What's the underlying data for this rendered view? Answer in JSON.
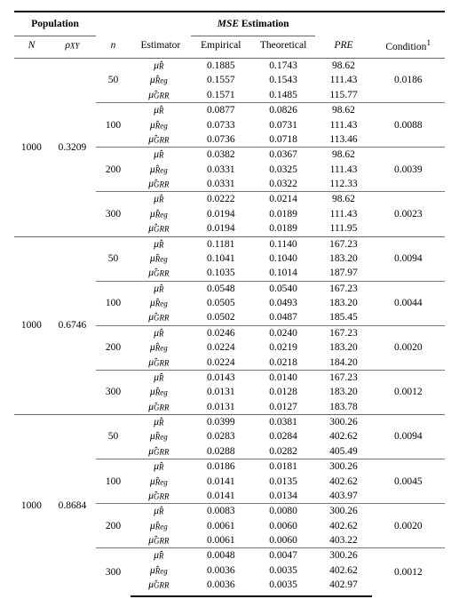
{
  "table": {
    "type": "table",
    "background_color": "#ffffff",
    "font_family": "Palatino, serif",
    "base_fontsize_pt": 9,
    "rule_color": "#000000",
    "subrule_color": "#777777",
    "columns": [
      "N",
      "rho_XY",
      "n",
      "Estimator",
      "Empirical",
      "Theoretical",
      "PRE",
      "Condition"
    ],
    "header": {
      "population_label": "Population",
      "mse_label": "MSE",
      "mse_estimation_word": "Estimation",
      "N": "N",
      "rho": "ρ",
      "rho_sub": "XY",
      "n": "n",
      "estimator": "Estimator",
      "empirical": "Empirical",
      "theoretical": "Theoretical",
      "pre": "PRE",
      "condition": "Condition",
      "condition_sup": "1"
    },
    "estimators": {
      "R": {
        "symbol": "μ̂",
        "sub": "R"
      },
      "Reg": {
        "symbol": "μ̂",
        "sub": "Reg"
      },
      "GRR": {
        "symbol": "μ̂",
        "sub": "GRR"
      }
    },
    "blocks": [
      {
        "N": "1000",
        "rho": "0.3209",
        "groups": [
          {
            "n": "50",
            "rows": [
              {
                "est": "R",
                "emp": "0.1885",
                "theo": "0.1743",
                "pre": "98.62"
              },
              {
                "est": "Reg",
                "emp": "0.1557",
                "theo": "0.1543",
                "pre": "111.43"
              },
              {
                "est": "GRR",
                "emp": "0.1571",
                "theo": "0.1485",
                "pre": "115.77"
              }
            ],
            "condition": "0.0186"
          },
          {
            "n": "100",
            "rows": [
              {
                "est": "R",
                "emp": "0.0877",
                "theo": "0.0826",
                "pre": "98.62"
              },
              {
                "est": "Reg",
                "emp": "0.0733",
                "theo": "0.0731",
                "pre": "111.43"
              },
              {
                "est": "GRR",
                "emp": "0.0736",
                "theo": "0.0718",
                "pre": "113.46"
              }
            ],
            "condition": "0.0088"
          },
          {
            "n": "200",
            "rows": [
              {
                "est": "R",
                "emp": "0.0382",
                "theo": "0.0367",
                "pre": "98.62"
              },
              {
                "est": "Reg",
                "emp": "0.0331",
                "theo": "0.0325",
                "pre": "111.43"
              },
              {
                "est": "GRR",
                "emp": "0.0331",
                "theo": "0.0322",
                "pre": "112.33"
              }
            ],
            "condition": "0.0039"
          },
          {
            "n": "300",
            "rows": [
              {
                "est": "R",
                "emp": "0.0222",
                "theo": "0.0214",
                "pre": "98.62"
              },
              {
                "est": "Reg",
                "emp": "0.0194",
                "theo": "0.0189",
                "pre": "111.43"
              },
              {
                "est": "GRR",
                "emp": "0.0194",
                "theo": "0.0189",
                "pre": "111.95"
              }
            ],
            "condition": "0.0023"
          }
        ]
      },
      {
        "N": "1000",
        "rho": "0.6746",
        "groups": [
          {
            "n": "50",
            "rows": [
              {
                "est": "R",
                "emp": "0.1181",
                "theo": "0.1140",
                "pre": "167.23"
              },
              {
                "est": "Reg",
                "emp": "0.1041",
                "theo": "0.1040",
                "pre": "183.20"
              },
              {
                "est": "GRR",
                "emp": "0.1035",
                "theo": "0.1014",
                "pre": "187.97"
              }
            ],
            "condition": "0.0094"
          },
          {
            "n": "100",
            "rows": [
              {
                "est": "R",
                "emp": "0.0548",
                "theo": "0.0540",
                "pre": "167.23"
              },
              {
                "est": "Reg",
                "emp": "0.0505",
                "theo": "0.0493",
                "pre": "183.20"
              },
              {
                "est": "GRR",
                "emp": "0.0502",
                "theo": "0.0487",
                "pre": "185.45"
              }
            ],
            "condition": "0.0044"
          },
          {
            "n": "200",
            "rows": [
              {
                "est": "R",
                "emp": "0.0246",
                "theo": "0.0240",
                "pre": "167.23"
              },
              {
                "est": "Reg",
                "emp": "0.0224",
                "theo": "0.0219",
                "pre": "183.20"
              },
              {
                "est": "GRR",
                "emp": "0.0224",
                "theo": "0.0218",
                "pre": "184.20"
              }
            ],
            "condition": "0.0020"
          },
          {
            "n": "300",
            "rows": [
              {
                "est": "R",
                "emp": "0.0143",
                "theo": "0.0140",
                "pre": "167.23"
              },
              {
                "est": "Reg",
                "emp": "0.0131",
                "theo": "0.0128",
                "pre": "183.20"
              },
              {
                "est": "GRR",
                "emp": "0.0131",
                "theo": "0.0127",
                "pre": "183.78"
              }
            ],
            "condition": "0.0012"
          }
        ]
      },
      {
        "N": "1000",
        "rho": "0.8684",
        "groups": [
          {
            "n": "50",
            "rows": [
              {
                "est": "R",
                "emp": "0.0399",
                "theo": "0.0381",
                "pre": "300.26"
              },
              {
                "est": "Reg",
                "emp": "0.0283",
                "theo": "0.0284",
                "pre": "402.62"
              },
              {
                "est": "GRR",
                "emp": "0.0288",
                "theo": "0.0282",
                "pre": "405.49"
              }
            ],
            "condition": "0.0094"
          },
          {
            "n": "100",
            "rows": [
              {
                "est": "R",
                "emp": "0.0186",
                "theo": "0.0181",
                "pre": "300.26"
              },
              {
                "est": "Reg",
                "emp": "0.0141",
                "theo": "0.0135",
                "pre": "402.62"
              },
              {
                "est": "GRR",
                "emp": "0.0141",
                "theo": "0.0134",
                "pre": "403.97"
              }
            ],
            "condition": "0.0045"
          },
          {
            "n": "200",
            "rows": [
              {
                "est": "R",
                "emp": "0.0083",
                "theo": "0.0080",
                "pre": "300.26"
              },
              {
                "est": "Reg",
                "emp": "0.0061",
                "theo": "0.0060",
                "pre": "402.62"
              },
              {
                "est": "GRR",
                "emp": "0.0061",
                "theo": "0.0060",
                "pre": "403.22"
              }
            ],
            "condition": "0.0020"
          },
          {
            "n": "300",
            "rows": [
              {
                "est": "R",
                "emp": "0.0048",
                "theo": "0.0047",
                "pre": "300.26"
              },
              {
                "est": "Reg",
                "emp": "0.0036",
                "theo": "0.0035",
                "pre": "402.62"
              },
              {
                "est": "GRR",
                "emp": "0.0036",
                "theo": "0.0035",
                "pre": "402.97"
              }
            ],
            "condition": "0.0012"
          }
        ]
      }
    ]
  }
}
